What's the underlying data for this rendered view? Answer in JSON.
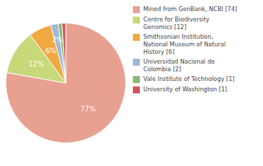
{
  "chart_data": {
    "type": "pie",
    "categories": [
      "Mined from GenBank, NCBI [74]",
      "Centre for Biodiversity\nGenomics [12]",
      "Smithsonian Institution,\nNational Museum of Natural\nHistory [6]",
      "Universidad Nacional de\nColombia [2]",
      "Vale Institute of Technology [1]",
      "University of Washington [1]"
    ],
    "values": [
      77,
      12,
      6,
      2,
      1,
      1
    ],
    "value_labels": [
      "77%",
      "12%",
      "6%",
      "2%",
      null,
      null
    ],
    "data_labels": true,
    "colors": [
      "#e8a090",
      "#c8d97a",
      "#f0a840",
      "#a0b8d8",
      "#8ab870",
      "#d05858"
    ],
    "legend": "right"
  }
}
